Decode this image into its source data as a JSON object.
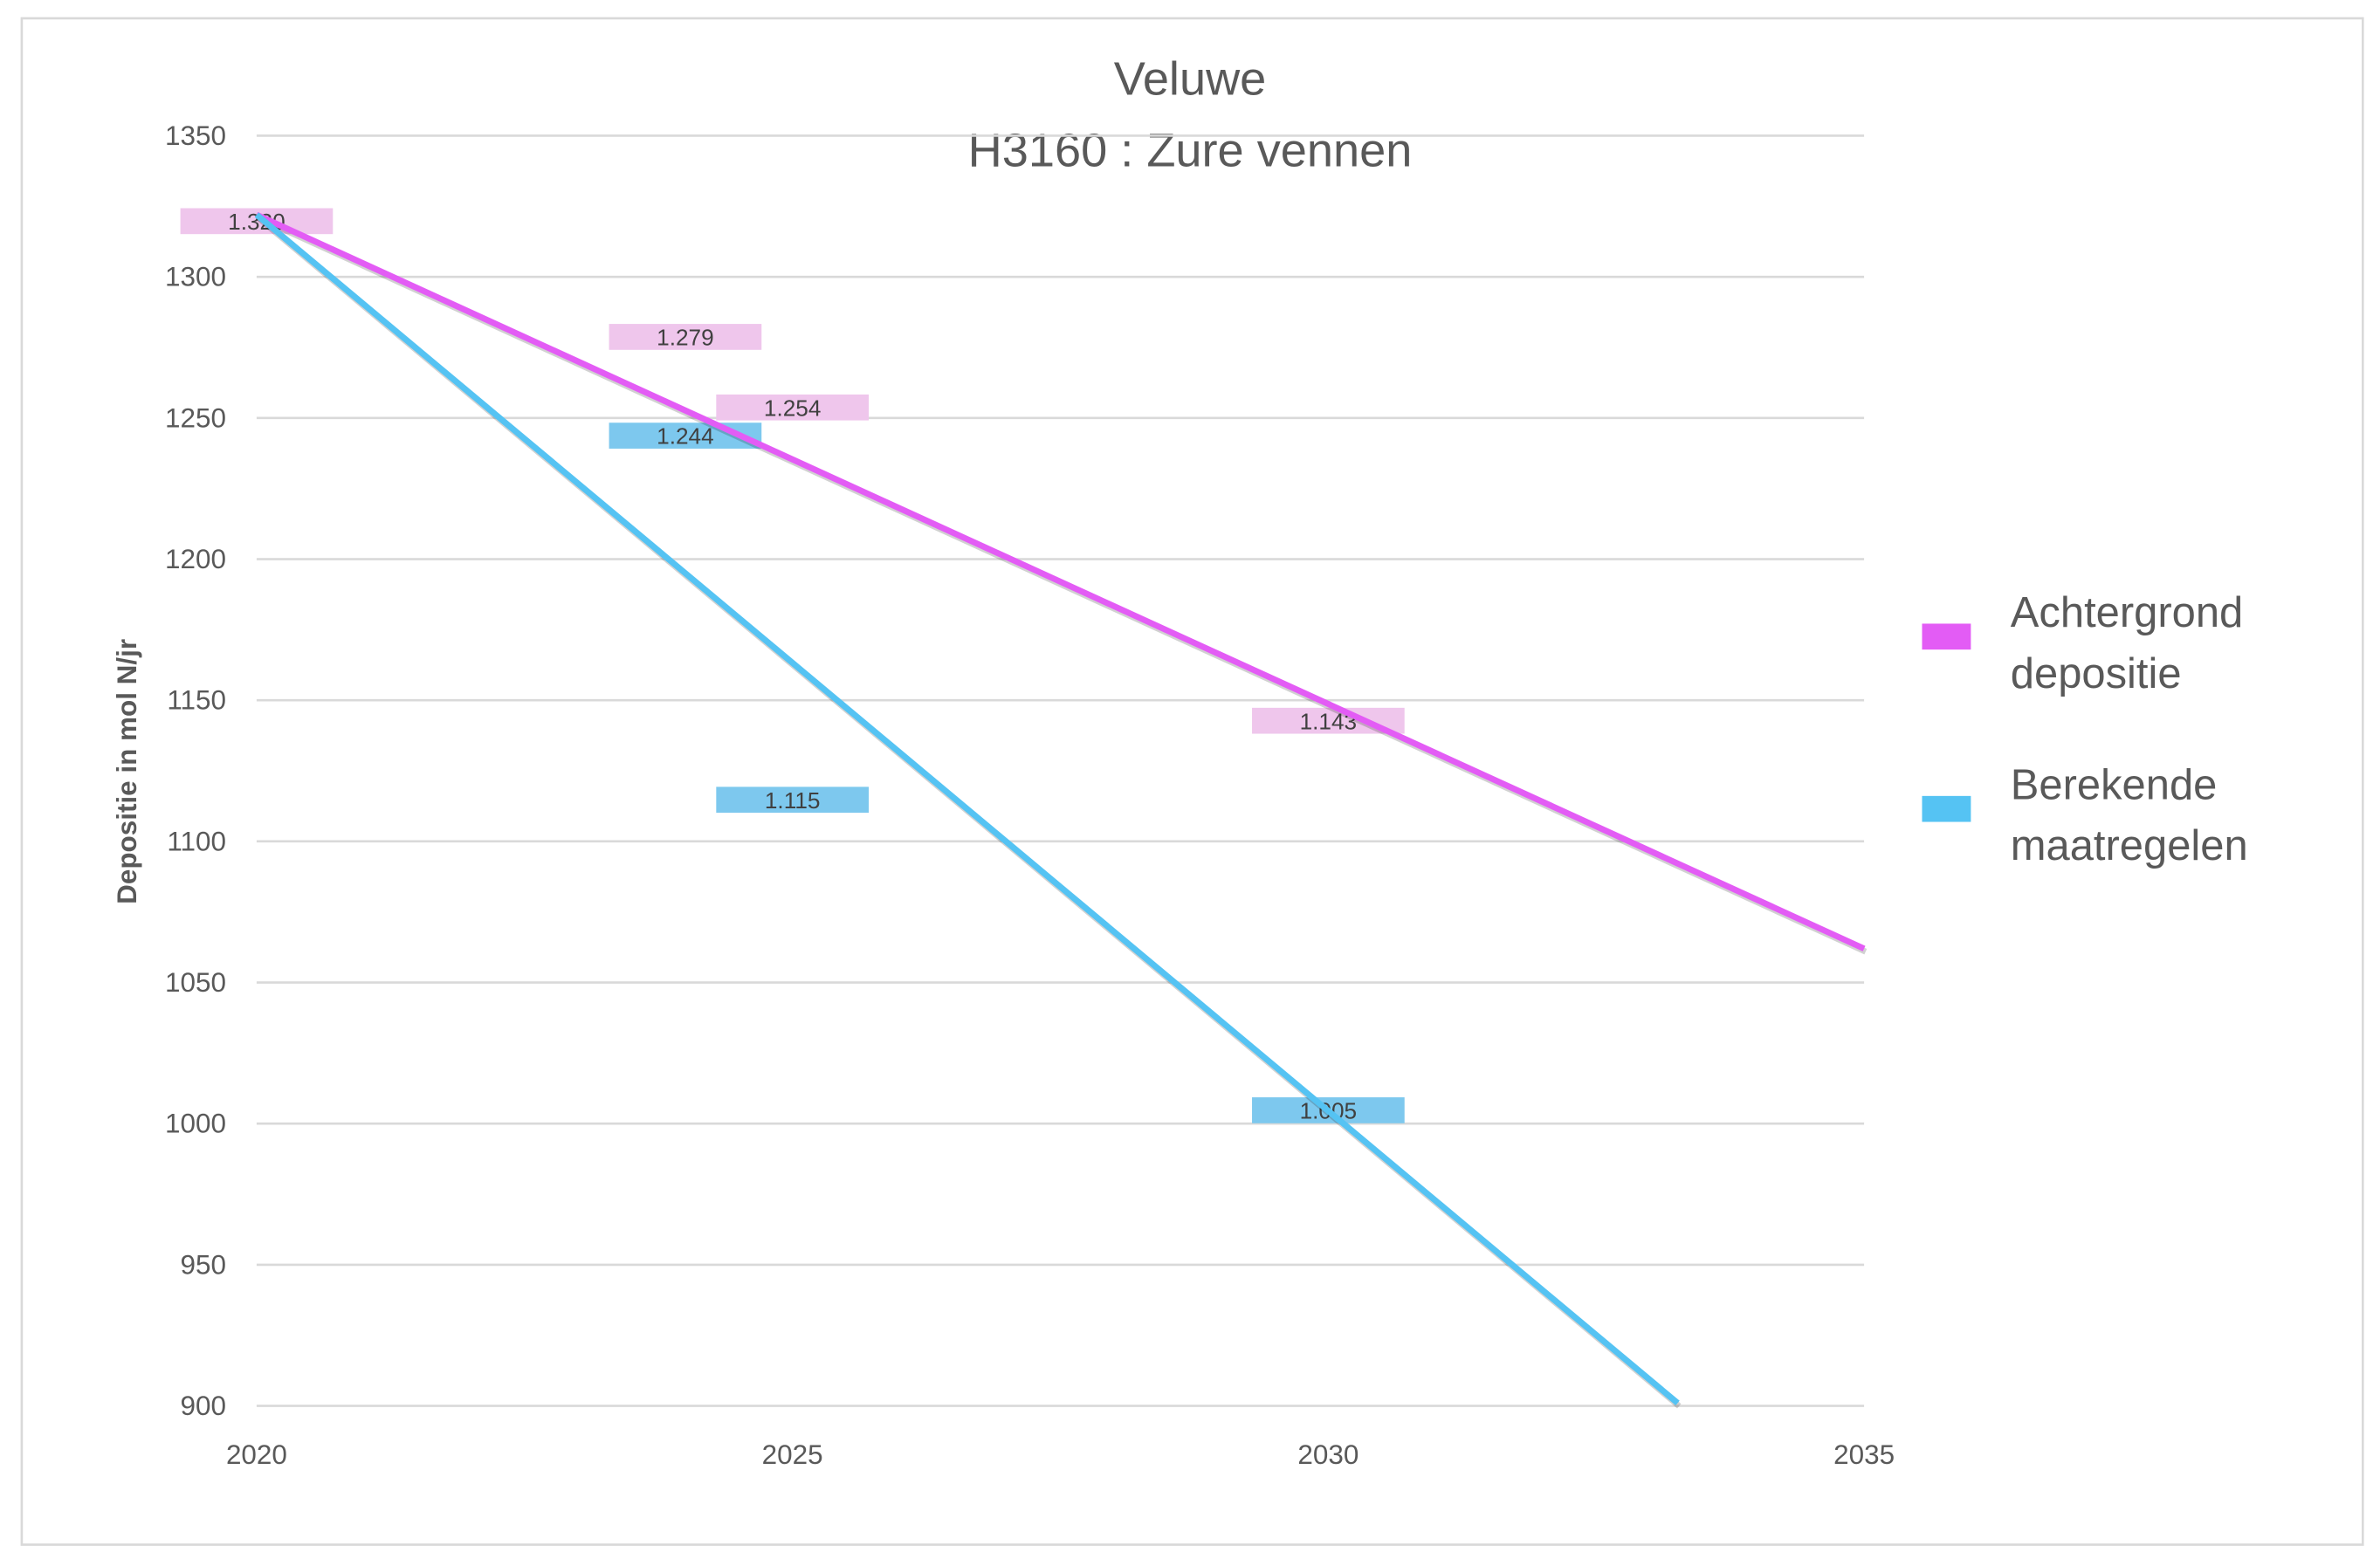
{
  "chart_data": {
    "type": "scatter",
    "title": [
      "Veluwe",
      "H3160 : Zure vennen"
    ],
    "xlabel": "",
    "ylabel": "Depositie in mol N/jr",
    "xlim": [
      2020,
      2035
    ],
    "ylim": [
      900,
      1350
    ],
    "x_ticks": [
      2020,
      2025,
      2030,
      2035
    ],
    "y_ticks": [
      900,
      950,
      1000,
      1050,
      1100,
      1150,
      1200,
      1250,
      1300,
      1350
    ],
    "grid": "horizontal",
    "legend_position": "right",
    "series": [
      {
        "name": "Achtergrond depositie",
        "legend_lines": [
          "Achtergrond",
          "depositie"
        ],
        "color": "#e35cf5",
        "label_bg": "#efc6ec",
        "points": [
          {
            "x": 2020,
            "y": 1320,
            "label": "1.320"
          },
          {
            "x": 2024,
            "y": 1279,
            "label": "1.279"
          },
          {
            "x": 2025,
            "y": 1254,
            "label": "1.254"
          },
          {
            "x": 2030,
            "y": 1143,
            "label": "1.143"
          }
        ],
        "trendline": [
          [
            2020,
            1322
          ],
          [
            2035,
            1062
          ]
        ]
      },
      {
        "name": "Berekende maatregelen",
        "legend_lines": [
          "Berekende",
          "maatregelen"
        ],
        "color": "#55c3f3",
        "label_bg": "#7dc8ee",
        "points": [
          {
            "x": 2024,
            "y": 1244,
            "label": "1.244"
          },
          {
            "x": 2025,
            "y": 1115,
            "label": "1.115"
          },
          {
            "x": 2030,
            "y": 1005,
            "label": "1.005"
          }
        ],
        "trendline": [
          [
            2020,
            1322
          ],
          [
            2033.26,
            901
          ]
        ]
      }
    ]
  }
}
